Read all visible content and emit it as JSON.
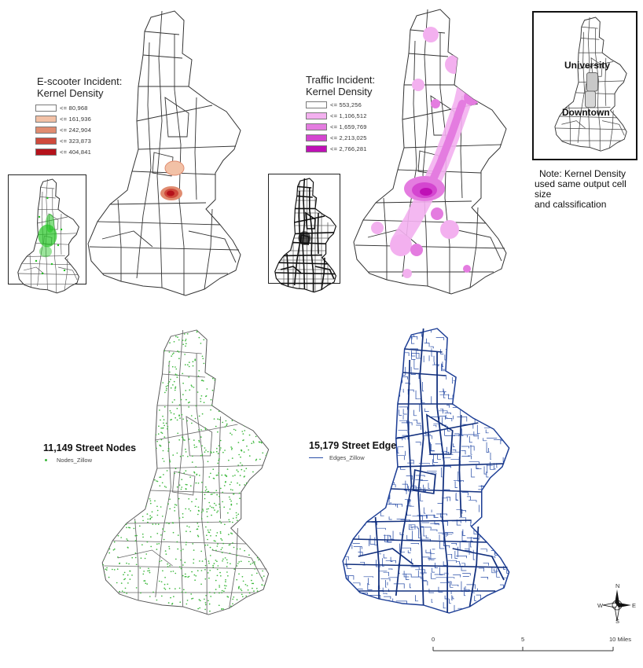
{
  "escooter_legend": {
    "title_line1": "E-scooter Incident:",
    "title_line2": "Kernel Density",
    "classes": [
      {
        "label": "<= 80,968",
        "color": "#ffffff"
      },
      {
        "label": "<= 161,936",
        "color": "#f2c1a6"
      },
      {
        "label": "<= 242,904",
        "color": "#e08c70"
      },
      {
        "label": "<= 323,873",
        "color": "#cf4a3c"
      },
      {
        "label": "<= 404,841",
        "color": "#b5121b"
      }
    ]
  },
  "traffic_legend": {
    "title_line1": "Traffic Incident:",
    "title_line2": "Kernel Density",
    "classes": [
      {
        "label": "<= 553,256",
        "color": "#ffffff"
      },
      {
        "label": "<= 1,106,512",
        "color": "#f3b0ef"
      },
      {
        "label": "<= 1,659,769",
        "color": "#e47ce0"
      },
      {
        "label": "<= 2,213,025",
        "color": "#d446d0"
      },
      {
        "label": "<= 2,766,281",
        "color": "#bf10b6"
      }
    ]
  },
  "locator_inset": {
    "label_university": "University",
    "label_downtown": "Downtown"
  },
  "note": {
    "line1": "Note: Kernel Density",
    "line2": "used same output cell size",
    "line3": "and calssification"
  },
  "nodes_panel": {
    "title": "11,149 Street Nodes",
    "legend_label": "Nodes_Zillow",
    "color": "#3cb83c"
  },
  "edges_panel": {
    "title": "15,179 Street Edges",
    "legend_label": "Edges_Zillow",
    "color": "#2a4fa8"
  },
  "north_arrow": {
    "n": "N",
    "s": "S",
    "e": "E",
    "w": "W"
  },
  "scale_bar": {
    "tick_0": "0",
    "tick_5": "5",
    "tick_10": "10",
    "unit": "Miles"
  }
}
